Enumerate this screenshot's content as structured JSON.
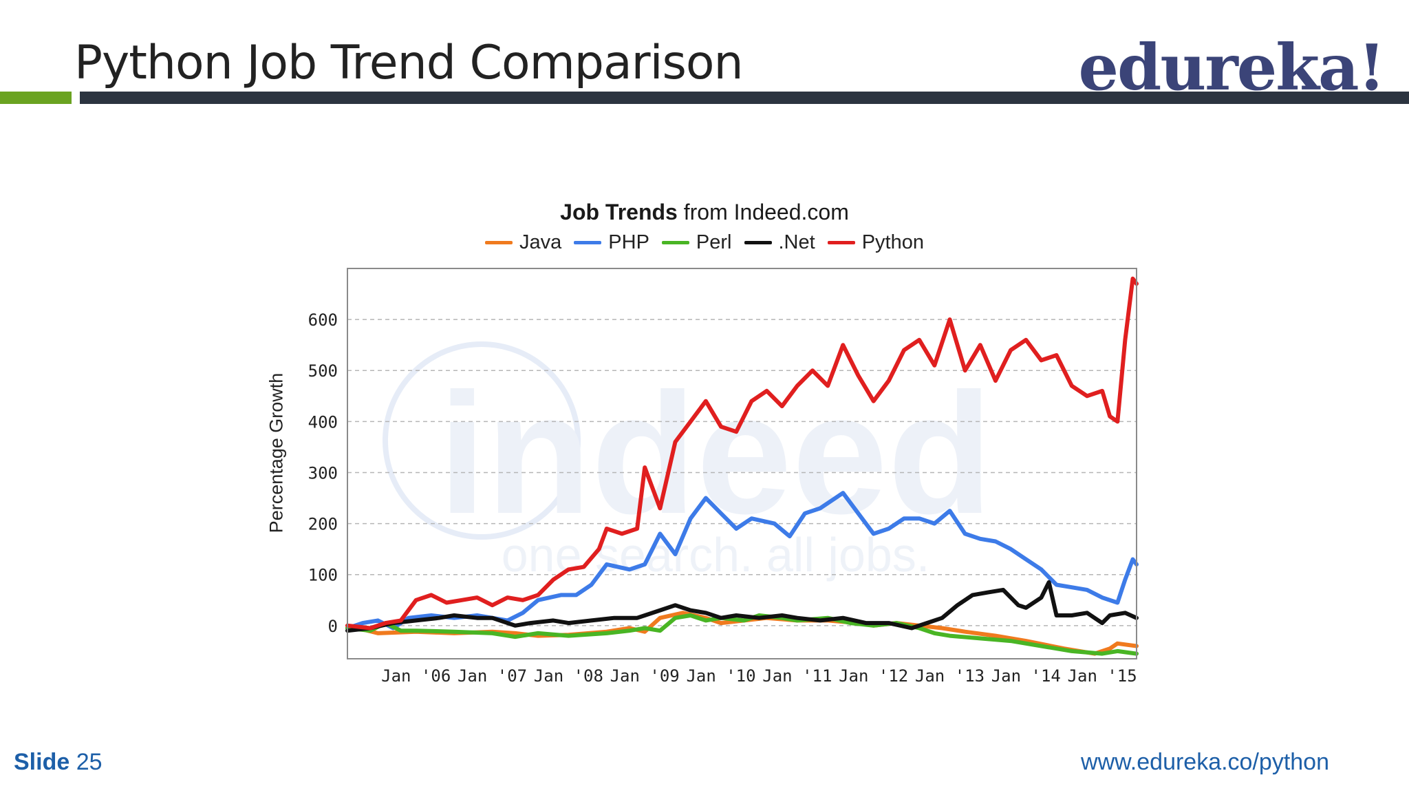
{
  "slide": {
    "title": "Python Job Trend Comparison",
    "brand": "edureka!",
    "footer_label": "Slide",
    "footer_number": "25",
    "footer_url": "www.edureka.co/python",
    "colors": {
      "brand": "#3b4478",
      "accent_green": "#6aa321",
      "rule_dark": "#2c3440",
      "footer_blue": "#1d5fa8"
    }
  },
  "chart_title": {
    "bold": "Job Trends",
    "rest": " from Indeed.com"
  },
  "watermark": {
    "logo": "indeed",
    "tagline": "one search. all jobs."
  },
  "chart_data": {
    "type": "line",
    "ylabel": "Percentage Growth",
    "x_labels": [
      "Jan '06",
      "Jan '07",
      "Jan '08",
      "Jan '09",
      "Jan '10",
      "Jan '11",
      "Jan '12",
      "Jan '13",
      "Jan '14",
      "Jan '15"
    ],
    "x_label_years": [
      2006,
      2007,
      2008,
      2009,
      2010,
      2011,
      2012,
      2013,
      2014,
      2015
    ],
    "xlim": [
      2005.1,
      2015.45
    ],
    "yticks": [
      0,
      100,
      200,
      300,
      400,
      500,
      600
    ],
    "ylim": [
      -65,
      700
    ],
    "grid": true,
    "legend_position": "top-center",
    "series": [
      {
        "name": "Java",
        "color": "#f07a1e",
        "points": [
          [
            2005.1,
            0
          ],
          [
            2005.5,
            -15
          ],
          [
            2006.0,
            -12
          ],
          [
            2006.5,
            -15
          ],
          [
            2007.0,
            -12
          ],
          [
            2007.3,
            -15
          ],
          [
            2007.6,
            -20
          ],
          [
            2008.0,
            -18
          ],
          [
            2008.5,
            -12
          ],
          [
            2008.8,
            -5
          ],
          [
            2009.0,
            -12
          ],
          [
            2009.2,
            15
          ],
          [
            2009.5,
            25
          ],
          [
            2009.8,
            15
          ],
          [
            2010.0,
            5
          ],
          [
            2010.3,
            10
          ],
          [
            2010.6,
            15
          ],
          [
            2011.0,
            10
          ],
          [
            2011.4,
            10
          ],
          [
            2011.8,
            5
          ],
          [
            2012.0,
            0
          ],
          [
            2012.3,
            5
          ],
          [
            2012.6,
            0
          ],
          [
            2012.9,
            -5
          ],
          [
            2013.2,
            -12
          ],
          [
            2013.6,
            -20
          ],
          [
            2014.0,
            -30
          ],
          [
            2014.5,
            -45
          ],
          [
            2014.9,
            -55
          ],
          [
            2015.1,
            -45
          ],
          [
            2015.2,
            -35
          ],
          [
            2015.45,
            -40
          ]
        ]
      },
      {
        "name": "PHP",
        "color": "#3d7be8",
        "points": [
          [
            2005.1,
            -5
          ],
          [
            2005.3,
            5
          ],
          [
            2005.5,
            10
          ],
          [
            2005.7,
            -5
          ],
          [
            2005.9,
            15
          ],
          [
            2006.2,
            20
          ],
          [
            2006.5,
            15
          ],
          [
            2006.8,
            20
          ],
          [
            2007.0,
            15
          ],
          [
            2007.2,
            10
          ],
          [
            2007.4,
            25
          ],
          [
            2007.6,
            50
          ],
          [
            2007.9,
            60
          ],
          [
            2008.1,
            60
          ],
          [
            2008.3,
            80
          ],
          [
            2008.5,
            120
          ],
          [
            2008.8,
            110
          ],
          [
            2009.0,
            120
          ],
          [
            2009.2,
            180
          ],
          [
            2009.4,
            140
          ],
          [
            2009.6,
            210
          ],
          [
            2009.8,
            250
          ],
          [
            2010.0,
            220
          ],
          [
            2010.2,
            190
          ],
          [
            2010.4,
            210
          ],
          [
            2010.7,
            200
          ],
          [
            2010.9,
            175
          ],
          [
            2011.1,
            220
          ],
          [
            2011.3,
            230
          ],
          [
            2011.6,
            260
          ],
          [
            2011.8,
            220
          ],
          [
            2012.0,
            180
          ],
          [
            2012.2,
            190
          ],
          [
            2012.4,
            210
          ],
          [
            2012.6,
            210
          ],
          [
            2012.8,
            200
          ],
          [
            2013.0,
            225
          ],
          [
            2013.2,
            180
          ],
          [
            2013.4,
            170
          ],
          [
            2013.6,
            165
          ],
          [
            2013.8,
            150
          ],
          [
            2014.0,
            130
          ],
          [
            2014.2,
            110
          ],
          [
            2014.4,
            80
          ],
          [
            2014.6,
            75
          ],
          [
            2014.8,
            70
          ],
          [
            2015.0,
            55
          ],
          [
            2015.2,
            45
          ],
          [
            2015.3,
            90
          ],
          [
            2015.4,
            130
          ],
          [
            2015.45,
            120
          ]
        ]
      },
      {
        "name": "Perl",
        "color": "#49b524",
        "points": [
          [
            2005.1,
            -5
          ],
          [
            2005.4,
            -10
          ],
          [
            2005.6,
            5
          ],
          [
            2005.8,
            -10
          ],
          [
            2006.0,
            -10
          ],
          [
            2006.5,
            -12
          ],
          [
            2007.0,
            -15
          ],
          [
            2007.3,
            -22
          ],
          [
            2007.6,
            -15
          ],
          [
            2008.0,
            -20
          ],
          [
            2008.5,
            -15
          ],
          [
            2008.8,
            -10
          ],
          [
            2009.0,
            -5
          ],
          [
            2009.2,
            -10
          ],
          [
            2009.4,
            15
          ],
          [
            2009.6,
            20
          ],
          [
            2009.8,
            10
          ],
          [
            2010.0,
            15
          ],
          [
            2010.3,
            10
          ],
          [
            2010.5,
            20
          ],
          [
            2010.8,
            15
          ],
          [
            2011.0,
            10
          ],
          [
            2011.4,
            15
          ],
          [
            2011.7,
            5
          ],
          [
            2012.0,
            0
          ],
          [
            2012.3,
            5
          ],
          [
            2012.6,
            -5
          ],
          [
            2012.8,
            -15
          ],
          [
            2013.0,
            -20
          ],
          [
            2013.4,
            -25
          ],
          [
            2013.8,
            -30
          ],
          [
            2014.2,
            -40
          ],
          [
            2014.6,
            -50
          ],
          [
            2015.0,
            -55
          ],
          [
            2015.2,
            -50
          ],
          [
            2015.45,
            -55
          ]
        ]
      },
      {
        "name": ".Net",
        "color": "#111111",
        "points": [
          [
            2005.1,
            -10
          ],
          [
            2005.4,
            -5
          ],
          [
            2005.7,
            5
          ],
          [
            2006.0,
            10
          ],
          [
            2006.3,
            15
          ],
          [
            2006.5,
            20
          ],
          [
            2006.8,
            15
          ],
          [
            2007.0,
            15
          ],
          [
            2007.3,
            0
          ],
          [
            2007.5,
            5
          ],
          [
            2007.8,
            10
          ],
          [
            2008.0,
            5
          ],
          [
            2008.3,
            10
          ],
          [
            2008.6,
            15
          ],
          [
            2008.9,
            15
          ],
          [
            2009.0,
            20
          ],
          [
            2009.2,
            30
          ],
          [
            2009.4,
            40
          ],
          [
            2009.6,
            30
          ],
          [
            2009.8,
            25
          ],
          [
            2010.0,
            15
          ],
          [
            2010.2,
            20
          ],
          [
            2010.5,
            15
          ],
          [
            2010.8,
            20
          ],
          [
            2011.0,
            15
          ],
          [
            2011.3,
            10
          ],
          [
            2011.6,
            15
          ],
          [
            2011.9,
            5
          ],
          [
            2012.2,
            5
          ],
          [
            2012.5,
            -5
          ],
          [
            2012.7,
            5
          ],
          [
            2012.9,
            15
          ],
          [
            2013.1,
            40
          ],
          [
            2013.3,
            60
          ],
          [
            2013.5,
            65
          ],
          [
            2013.7,
            70
          ],
          [
            2013.9,
            40
          ],
          [
            2014.0,
            35
          ],
          [
            2014.2,
            55
          ],
          [
            2014.3,
            85
          ],
          [
            2014.4,
            20
          ],
          [
            2014.6,
            20
          ],
          [
            2014.8,
            25
          ],
          [
            2015.0,
            5
          ],
          [
            2015.1,
            20
          ],
          [
            2015.3,
            25
          ],
          [
            2015.45,
            15
          ]
        ]
      },
      {
        "name": "Python",
        "color": "#e01f1f",
        "points": [
          [
            2005.1,
            0
          ],
          [
            2005.4,
            -5
          ],
          [
            2005.6,
            5
          ],
          [
            2005.8,
            10
          ],
          [
            2006.0,
            50
          ],
          [
            2006.2,
            60
          ],
          [
            2006.4,
            45
          ],
          [
            2006.6,
            50
          ],
          [
            2006.8,
            55
          ],
          [
            2007.0,
            40
          ],
          [
            2007.2,
            55
          ],
          [
            2007.4,
            50
          ],
          [
            2007.6,
            60
          ],
          [
            2007.8,
            90
          ],
          [
            2008.0,
            110
          ],
          [
            2008.2,
            115
          ],
          [
            2008.4,
            150
          ],
          [
            2008.5,
            190
          ],
          [
            2008.7,
            180
          ],
          [
            2008.9,
            190
          ],
          [
            2009.0,
            310
          ],
          [
            2009.2,
            230
          ],
          [
            2009.4,
            360
          ],
          [
            2009.6,
            400
          ],
          [
            2009.8,
            440
          ],
          [
            2010.0,
            390
          ],
          [
            2010.2,
            380
          ],
          [
            2010.4,
            440
          ],
          [
            2010.6,
            460
          ],
          [
            2010.8,
            430
          ],
          [
            2011.0,
            470
          ],
          [
            2011.2,
            500
          ],
          [
            2011.4,
            470
          ],
          [
            2011.6,
            550
          ],
          [
            2011.8,
            490
          ],
          [
            2012.0,
            440
          ],
          [
            2012.2,
            480
          ],
          [
            2012.4,
            540
          ],
          [
            2012.6,
            560
          ],
          [
            2012.8,
            510
          ],
          [
            2013.0,
            600
          ],
          [
            2013.2,
            500
          ],
          [
            2013.4,
            550
          ],
          [
            2013.6,
            480
          ],
          [
            2013.8,
            540
          ],
          [
            2014.0,
            560
          ],
          [
            2014.2,
            520
          ],
          [
            2014.4,
            530
          ],
          [
            2014.6,
            470
          ],
          [
            2014.8,
            450
          ],
          [
            2015.0,
            460
          ],
          [
            2015.1,
            410
          ],
          [
            2015.2,
            400
          ],
          [
            2015.3,
            560
          ],
          [
            2015.4,
            680
          ],
          [
            2015.45,
            670
          ]
        ]
      }
    ]
  }
}
